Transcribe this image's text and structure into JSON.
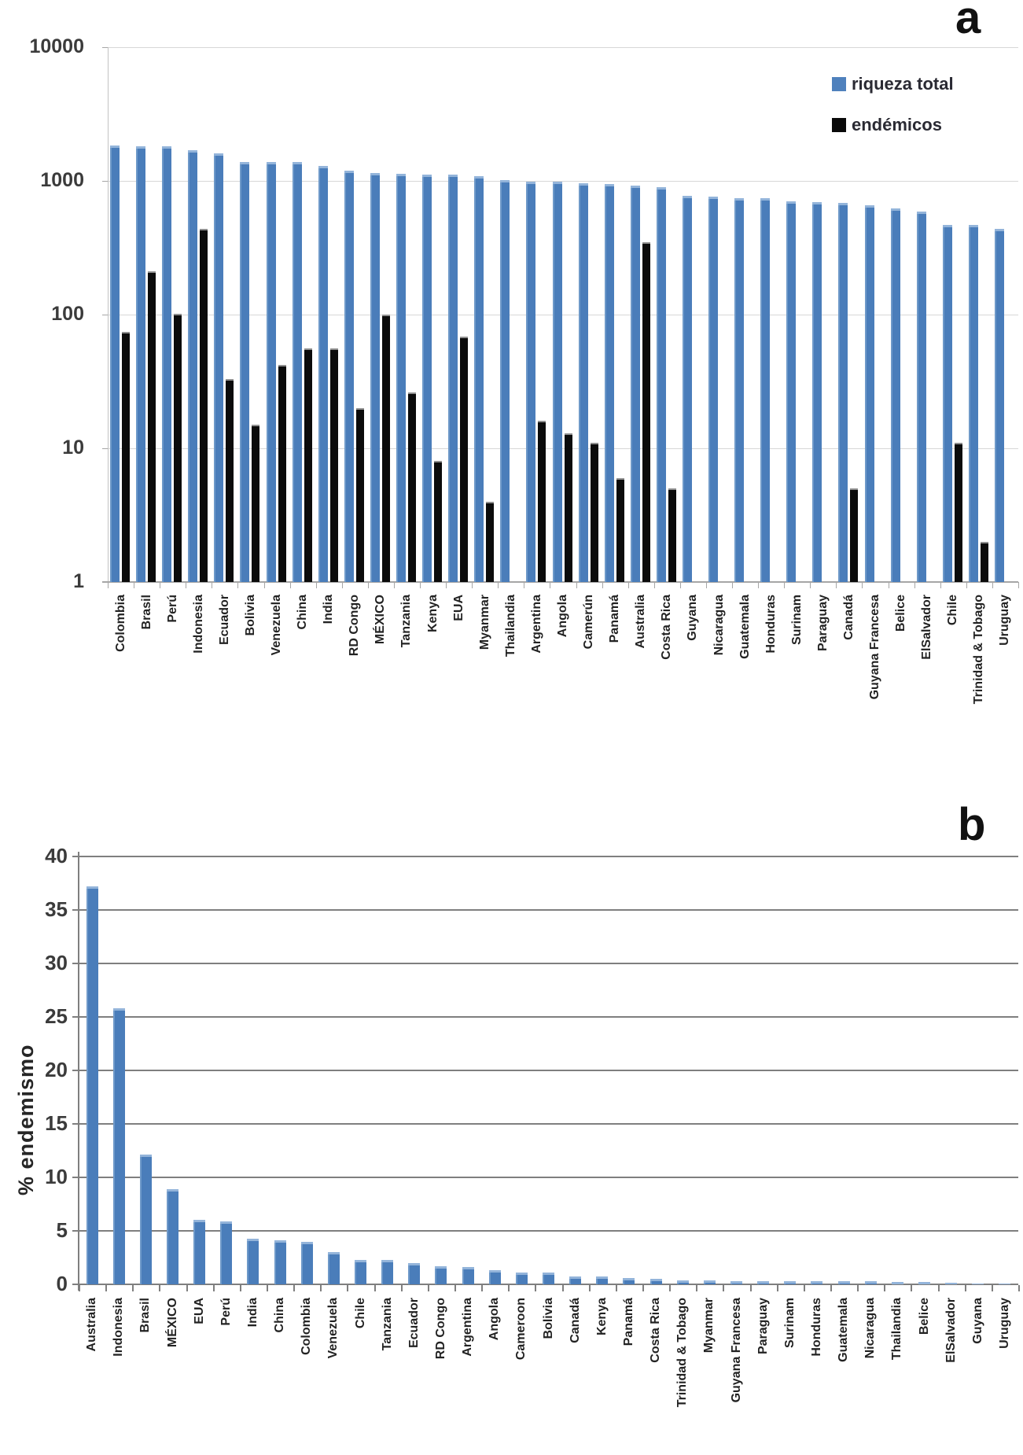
{
  "figure": {
    "background": "#ffffff",
    "bar_color_primary": "#4f81bd",
    "bar_color_secondary": "#000000",
    "gridline_color_a": "#d7d7d7",
    "gridline_color_b": "#7f7f7f"
  },
  "chart_data": [
    {
      "id": "a",
      "panel_label": "a",
      "type": "bar",
      "y_scale": "log",
      "ylim": [
        1,
        10000
      ],
      "y_ticks": [
        1,
        10,
        100,
        1000,
        10000
      ],
      "grid": true,
      "legend_position": "top-right-inside",
      "categories": [
        "Colombia",
        "Brasil",
        "Perú",
        "Indonesia",
        "Ecuador",
        "Bolivia",
        "Venezuela",
        "China",
        "India",
        "RD Congo",
        "MÉXICO",
        "Tanzania",
        "Kenya",
        "EUA",
        "Myanmar",
        "Thailandia",
        "Argentina",
        "Angola",
        "Camerún",
        "Panamá",
        "Australia",
        "Costa Rica",
        "Guyana",
        "Nicaragua",
        "Guatemala",
        "Honduras",
        "Surinam",
        "Paraguay",
        "Canadá",
        "Guyana Francesa",
        "Belice",
        "ElSalvador",
        "Chile",
        "Trinidad & Tobago",
        "Uruguay"
      ],
      "series": [
        {
          "name": "riqueza total",
          "color": "#4f81bd",
          "values": [
            1850,
            1820,
            1820,
            1700,
            1600,
            1380,
            1380,
            1380,
            1300,
            1200,
            1150,
            1130,
            1120,
            1110,
            1080,
            1010,
            990,
            985,
            960,
            950,
            925,
            895,
            775,
            760,
            740,
            740,
            700,
            690,
            685,
            660,
            625,
            590,
            470,
            470,
            440
          ]
        },
        {
          "name": "endémicos",
          "color": "#000000",
          "values": [
            74,
            210,
            102,
            440,
            33,
            15,
            42,
            56,
            56,
            20,
            100,
            26,
            8,
            68,
            4,
            null,
            16,
            13,
            11,
            6,
            350,
            5,
            null,
            null,
            null,
            null,
            null,
            null,
            5,
            null,
            null,
            null,
            11,
            2,
            null
          ]
        }
      ]
    },
    {
      "id": "b",
      "panel_label": "b",
      "type": "bar",
      "y_scale": "linear",
      "ylim": [
        0,
        40
      ],
      "y_tick_step": 5,
      "grid": true,
      "ylabel": "% endemismo",
      "categories": [
        "Australia",
        "Indonesia",
        "Brasil",
        "MÉXICO",
        "EUA",
        "Perú",
        "India",
        "China",
        "Colombia",
        "Venezuela",
        "Chile",
        "Tanzania",
        "Ecuador",
        "RD Congo",
        "Argentina",
        "Angola",
        "Cameroon",
        "Bolivia",
        "Canadá",
        "Kenya",
        "Panamá",
        "Costa Rica",
        "Trinidad & Tobago",
        "Myanmar",
        "Guyana Francesa",
        "Paraguay",
        "Surinam",
        "Honduras",
        "Guatemala",
        "Nicaragua",
        "Thailandia",
        "Belice",
        "ElSalvador",
        "Guyana",
        "Uruguay"
      ],
      "series": [
        {
          "name": "% endemismo",
          "color": "#4f81bd",
          "values": [
            37.2,
            25.8,
            12.1,
            8.9,
            6.0,
            5.9,
            4.3,
            4.1,
            4.0,
            3.0,
            2.3,
            2.3,
            2.0,
            1.7,
            1.6,
            1.3,
            1.1,
            1.1,
            0.7,
            0.7,
            0.6,
            0.5,
            0.4,
            0.4,
            0.3,
            0.3,
            0.3,
            0.3,
            0.3,
            0.3,
            0.2,
            0.2,
            0.15,
            0.1,
            0.1
          ]
        }
      ]
    }
  ]
}
